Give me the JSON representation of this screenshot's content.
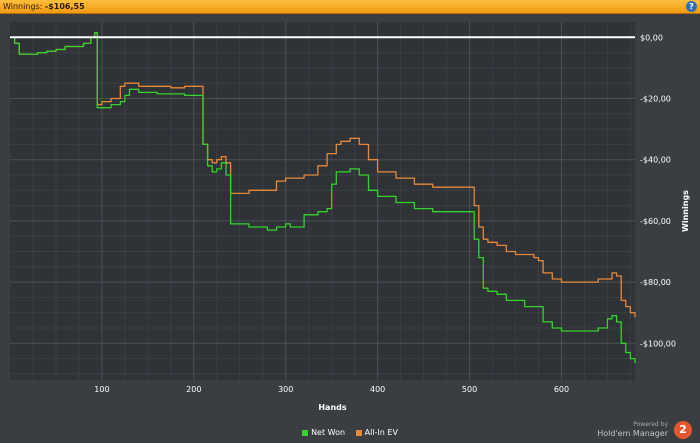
{
  "header": {
    "label": "Winnings:",
    "value": "-$106,55",
    "help_glyph": "?"
  },
  "brand": {
    "powered_by": "Powered by",
    "name": "Hold'em Manager",
    "logo_glyph": "2"
  },
  "chart_data": {
    "type": "line",
    "xlabel": "Hands",
    "ylabel": "Winnings",
    "xlim": [
      0,
      680
    ],
    "ylim": [
      -112,
      5
    ],
    "xticks": [
      100,
      200,
      300,
      400,
      500,
      600
    ],
    "yticks": [
      {
        "value": 0,
        "label": "$0,00"
      },
      {
        "value": -20,
        "label": "-$20,00"
      },
      {
        "value": -40,
        "label": "-$40,00"
      },
      {
        "value": -60,
        "label": "-$60,00"
      },
      {
        "value": -80,
        "label": "-$80,00"
      },
      {
        "value": -100,
        "label": "-$100,00"
      }
    ],
    "grid": true,
    "zero_line": true,
    "legend": "bottom-center",
    "series": [
      {
        "name": "Net Won",
        "color": "#35d32c",
        "x": [
          0,
          5,
          10,
          20,
          30,
          40,
          50,
          60,
          70,
          80,
          88,
          92,
          95,
          100,
          105,
          110,
          120,
          125,
          130,
          140,
          150,
          160,
          175,
          190,
          205,
          210,
          215,
          220,
          225,
          230,
          235,
          240,
          250,
          260,
          270,
          280,
          290,
          300,
          305,
          320,
          335,
          345,
          350,
          355,
          360,
          370,
          380,
          390,
          400,
          420,
          440,
          460,
          470,
          480,
          490,
          500,
          505,
          510,
          515,
          520,
          530,
          540,
          550,
          560,
          570,
          575,
          580,
          590,
          600,
          620,
          630,
          640,
          650,
          655,
          660,
          665,
          670,
          675,
          680
        ],
        "y": [
          0,
          -2,
          -5.5,
          -5.5,
          -5,
          -4.5,
          -4,
          -3,
          -3,
          -2,
          0,
          1.5,
          -23,
          -23,
          -23,
          -22,
          -21,
          -19,
          -17,
          -18,
          -18,
          -18.5,
          -18.5,
          -19,
          -19,
          -35,
          -42,
          -44,
          -43,
          -41,
          -45,
          -61,
          -61,
          -62,
          -62,
          -63,
          -62,
          -61,
          -62,
          -58,
          -57,
          -56,
          -48,
          -44,
          -44,
          -43,
          -45,
          -50,
          -52,
          -54,
          -56,
          -57,
          -57,
          -57,
          -57,
          -57,
          -66,
          -72,
          -82,
          -83,
          -84,
          -86,
          -86,
          -88,
          -88,
          -88,
          -93,
          -95,
          -96,
          -96,
          -96,
          -95,
          -92,
          -91,
          -93,
          -100,
          -103,
          -105,
          -106.5
        ]
      },
      {
        "name": "All-In EV",
        "color": "#e8893a",
        "x": [
          0,
          5,
          10,
          20,
          30,
          40,
          50,
          60,
          70,
          80,
          88,
          92,
          95,
          100,
          105,
          110,
          120,
          125,
          130,
          140,
          150,
          160,
          175,
          190,
          205,
          210,
          215,
          220,
          225,
          230,
          235,
          240,
          250,
          260,
          270,
          280,
          290,
          300,
          305,
          320,
          335,
          345,
          350,
          355,
          360,
          370,
          380,
          390,
          400,
          420,
          440,
          460,
          470,
          480,
          490,
          500,
          505,
          510,
          515,
          520,
          530,
          540,
          550,
          560,
          570,
          575,
          580,
          590,
          600,
          620,
          630,
          640,
          650,
          655,
          660,
          665,
          670,
          675,
          680
        ],
        "y": [
          0,
          -2,
          -5.5,
          -5.5,
          -5,
          -4.5,
          -4,
          -3,
          -3,
          -2,
          0,
          1.5,
          -22,
          -21,
          -21,
          -20,
          -16,
          -15,
          -15,
          -16,
          -16,
          -16,
          -16.5,
          -16,
          -16,
          -35,
          -40,
          -41,
          -40,
          -39,
          -41,
          -51,
          -51,
          -50,
          -50,
          -50,
          -47,
          -46,
          -46,
          -45,
          -42,
          -38,
          -38,
          -35,
          -34,
          -33,
          -35,
          -40,
          -44,
          -46,
          -48,
          -49,
          -49,
          -49,
          -49,
          -49,
          -55,
          -62,
          -66,
          -67,
          -68,
          -70,
          -71,
          -71,
          -72,
          -73,
          -77,
          -79,
          -80,
          -80,
          -80,
          -79,
          -79,
          -77,
          -78,
          -86,
          -88,
          -90,
          -91.5
        ]
      }
    ]
  }
}
